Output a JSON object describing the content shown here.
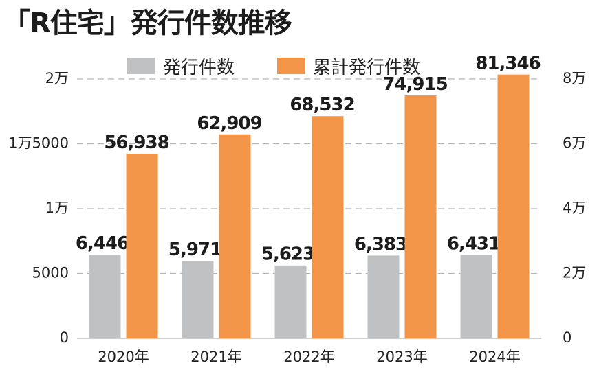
{
  "title": "「R住宅」発行件数推移",
  "chart_data": {
    "type": "bar",
    "title": "「R住宅」発行件数推移",
    "categories": [
      "2020年",
      "2021年",
      "2022年",
      "2023年",
      "2024年"
    ],
    "series": [
      {
        "name": "発行件数",
        "color": "#c0c1c3",
        "axis": "left",
        "values": [
          6446,
          5971,
          5623,
          6383,
          6431
        ],
        "data_labels": [
          "6,446",
          "5,971",
          "5,623",
          "6,383",
          "6,431"
        ]
      },
      {
        "name": "累計発行件数",
        "color": "#f39548",
        "axis": "right",
        "values": [
          56938,
          62909,
          68532,
          74915,
          81346
        ],
        "data_labels": [
          "56,938",
          "62,909",
          "68,532",
          "74,915",
          "81,346"
        ]
      }
    ],
    "left_axis": {
      "ylim": [
        0,
        20000
      ],
      "ticks": [
        0,
        5000,
        10000,
        15000,
        20000
      ],
      "tick_labels": [
        "0",
        "5000",
        "1万",
        "1万5000",
        "2万"
      ]
    },
    "right_axis": {
      "ylim": [
        0,
        80000
      ],
      "ticks": [
        0,
        20000,
        40000,
        60000,
        80000
      ],
      "tick_labels": [
        "0",
        "2万",
        "4万",
        "6万",
        "8万"
      ]
    },
    "grid": true,
    "legend_position": "top-center"
  }
}
